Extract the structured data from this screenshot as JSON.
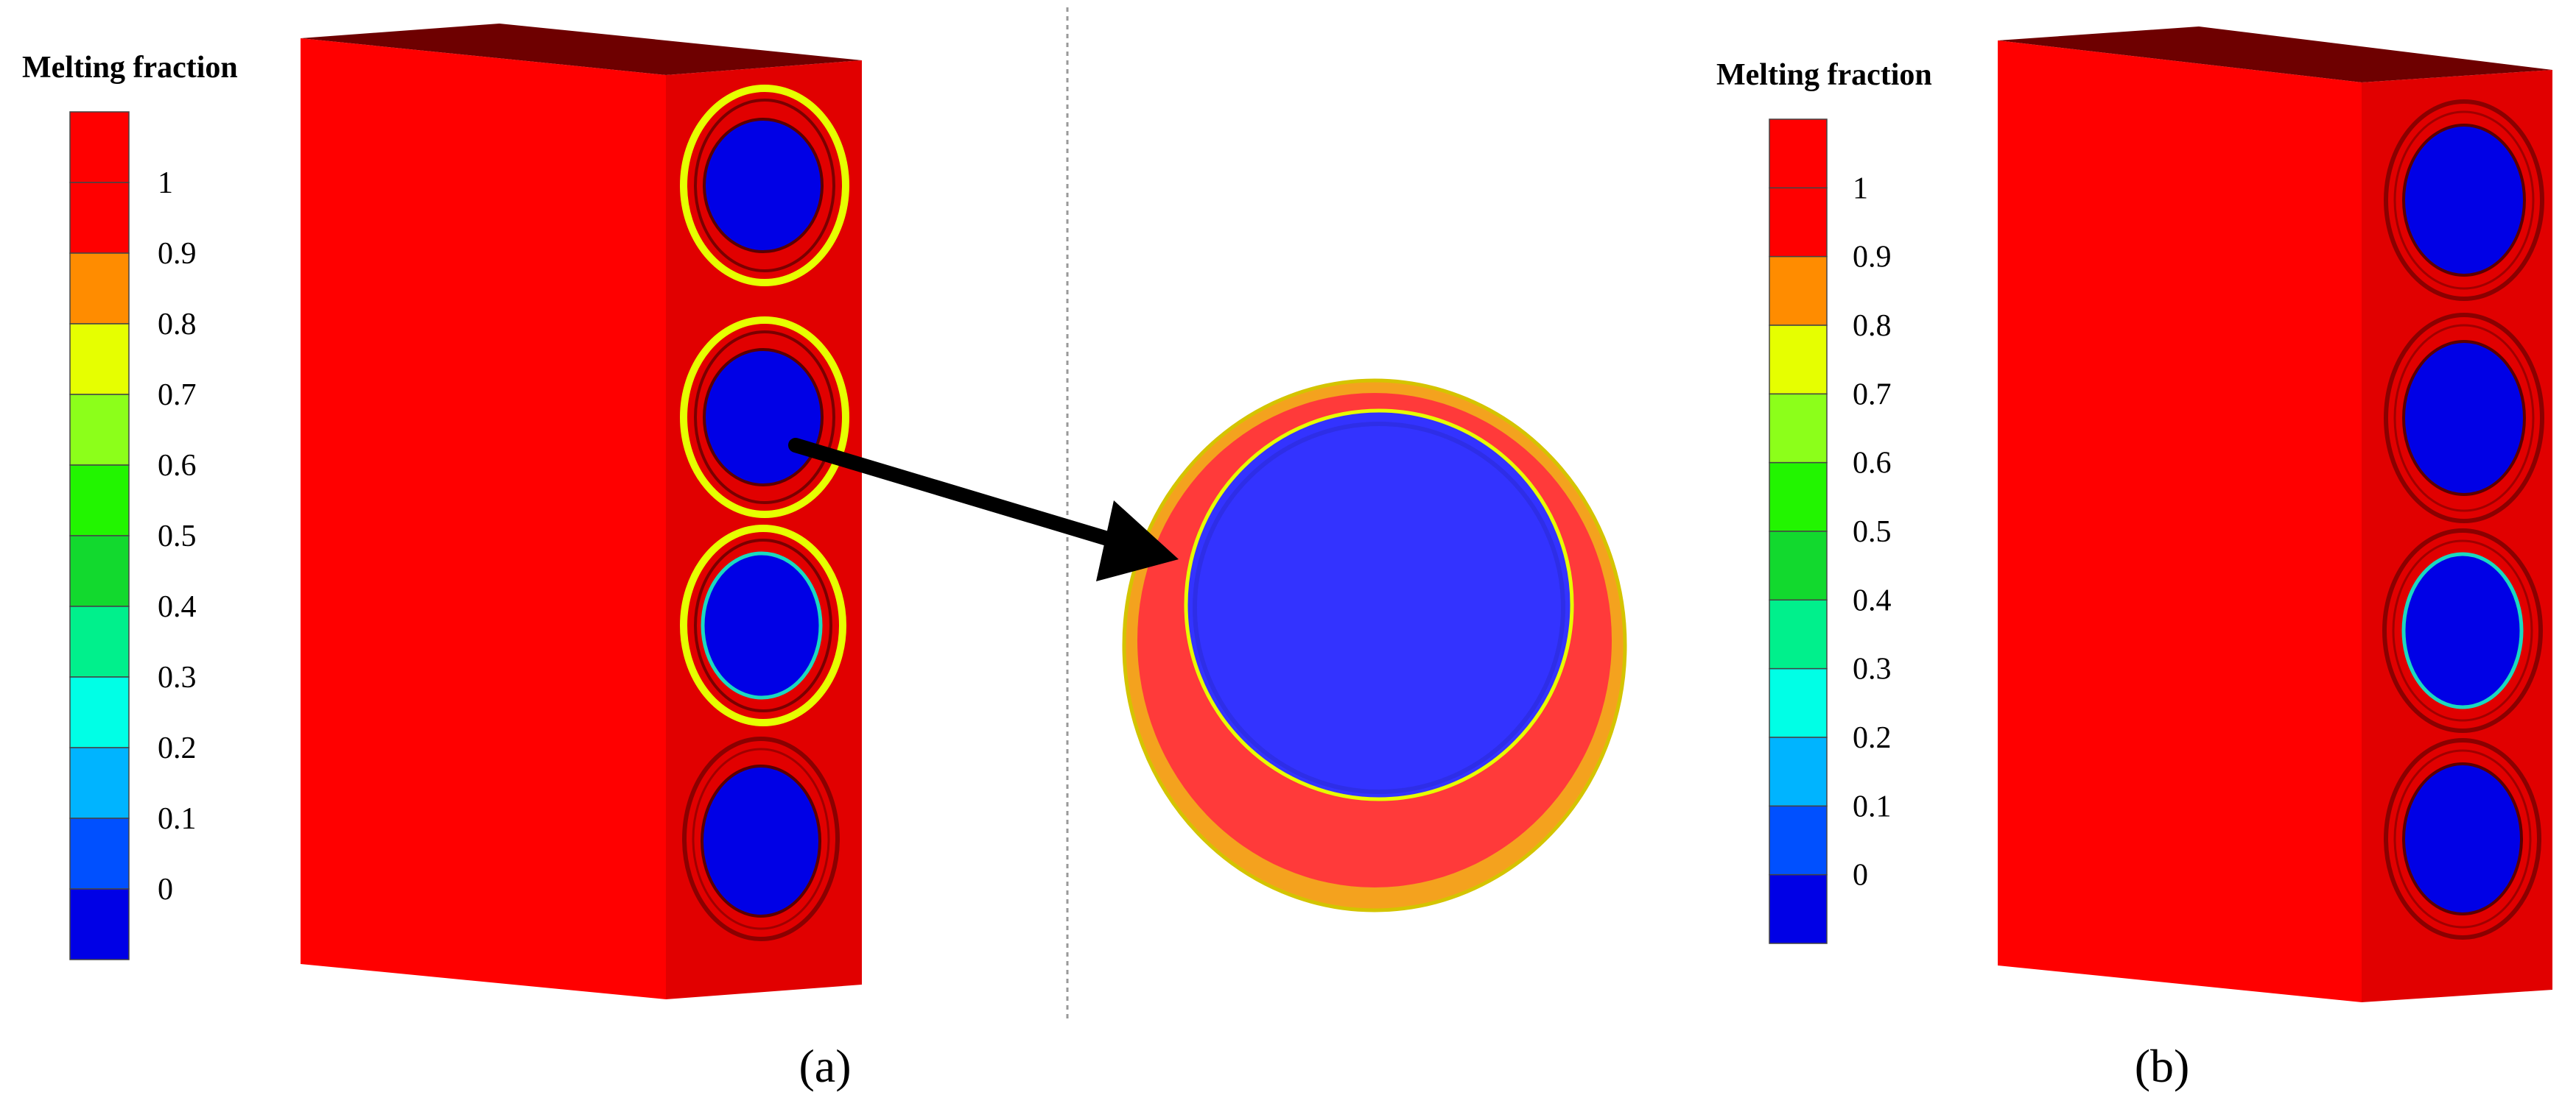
{
  "legend": {
    "title": "Melting fraction",
    "ticks": [
      "1",
      "0.9",
      "0.8",
      "0.7",
      "0.6",
      "0.5",
      "0.4",
      "0.3",
      "0.2",
      "0.1",
      "0"
    ],
    "colors": [
      "#ff0000",
      "#ff0000",
      "#ff8c00",
      "#e6ff00",
      "#8cff1a",
      "#22f500",
      "#12d92e",
      "#00f08c",
      "#00ffe6",
      "#00b4ff",
      "#0050ff",
      "#0000e6"
    ]
  },
  "captions": {
    "a": "(a)",
    "b": "(b)"
  },
  "colors": {
    "block_front": "#ff0000",
    "block_side": "#e10000",
    "block_top": "#6e0000",
    "tube_core": "#0000e6",
    "zoom_ring": "#ff3a3a",
    "zoom_core": "#3333ff",
    "zoom_outer": "#f4a21e",
    "mush": "#e6ff00"
  },
  "icons": [
    "arrow-icon"
  ]
}
